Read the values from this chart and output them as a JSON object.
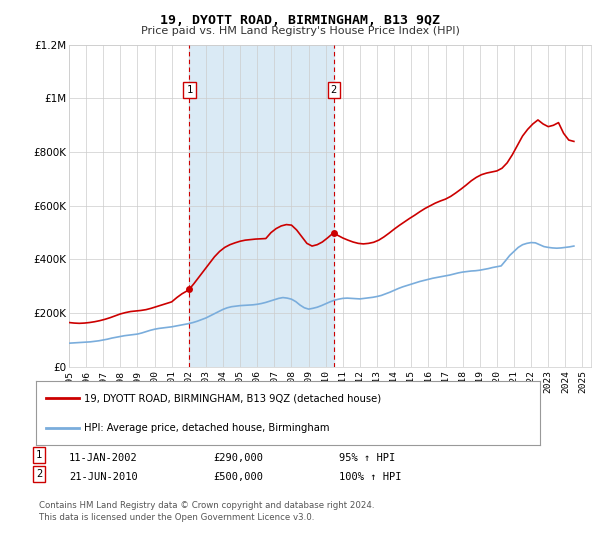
{
  "title": "19, DYOTT ROAD, BIRMINGHAM, B13 9QZ",
  "subtitle": "Price paid vs. HM Land Registry's House Price Index (HPI)",
  "hpi_label": "HPI: Average price, detached house, Birmingham",
  "property_label": "19, DYOTT ROAD, BIRMINGHAM, B13 9QZ (detached house)",
  "footer": "Contains HM Land Registry data © Crown copyright and database right 2024.\nThis data is licensed under the Open Government Licence v3.0.",
  "marker1_date": 2002.04,
  "marker1_value": 290000,
  "marker2_date": 2010.47,
  "marker2_value": 500000,
  "vline1_date": 2002.04,
  "vline2_date": 2010.47,
  "annotation1_date": "11-JAN-2002",
  "annotation1_price": "£290,000",
  "annotation1_hpi": "95% ↑ HPI",
  "annotation2_date": "21-JUN-2010",
  "annotation2_price": "£500,000",
  "annotation2_hpi": "100% ↑ HPI",
  "ylim": [
    0,
    1200000
  ],
  "xlim": [
    1995.0,
    2025.5
  ],
  "yticks": [
    0,
    200000,
    400000,
    600000,
    800000,
    1000000,
    1200000
  ],
  "ytick_labels": [
    "£0",
    "£200K",
    "£400K",
    "£600K",
    "£800K",
    "£1M",
    "£1.2M"
  ],
  "property_color": "#cc0000",
  "hpi_color": "#7aaddc",
  "vline_color": "#cc0000",
  "shade_color": "#daeaf5",
  "plot_bg": "#ffffff",
  "grid_color": "#cccccc",
  "hpi_data_x": [
    1995.0,
    1995.25,
    1995.5,
    1995.75,
    1996.0,
    1996.25,
    1996.5,
    1996.75,
    1997.0,
    1997.25,
    1997.5,
    1997.75,
    1998.0,
    1998.25,
    1998.5,
    1998.75,
    1999.0,
    1999.25,
    1999.5,
    1999.75,
    2000.0,
    2000.25,
    2000.5,
    2000.75,
    2001.0,
    2001.25,
    2001.5,
    2001.75,
    2002.0,
    2002.25,
    2002.5,
    2002.75,
    2003.0,
    2003.25,
    2003.5,
    2003.75,
    2004.0,
    2004.25,
    2004.5,
    2004.75,
    2005.0,
    2005.25,
    2005.5,
    2005.75,
    2006.0,
    2006.25,
    2006.5,
    2006.75,
    2007.0,
    2007.25,
    2007.5,
    2007.75,
    2008.0,
    2008.25,
    2008.5,
    2008.75,
    2009.0,
    2009.25,
    2009.5,
    2009.75,
    2010.0,
    2010.25,
    2010.5,
    2010.75,
    2011.0,
    2011.25,
    2011.5,
    2011.75,
    2012.0,
    2012.25,
    2012.5,
    2012.75,
    2013.0,
    2013.25,
    2013.5,
    2013.75,
    2014.0,
    2014.25,
    2014.5,
    2014.75,
    2015.0,
    2015.25,
    2015.5,
    2015.75,
    2016.0,
    2016.25,
    2016.5,
    2016.75,
    2017.0,
    2017.25,
    2017.5,
    2017.75,
    2018.0,
    2018.25,
    2018.5,
    2018.75,
    2019.0,
    2019.25,
    2019.5,
    2019.75,
    2020.0,
    2020.25,
    2020.5,
    2020.75,
    2021.0,
    2021.25,
    2021.5,
    2021.75,
    2022.0,
    2022.25,
    2022.5,
    2022.75,
    2023.0,
    2023.25,
    2023.5,
    2023.75,
    2024.0,
    2024.25,
    2024.5
  ],
  "hpi_data_y": [
    88000,
    89000,
    90000,
    91000,
    92000,
    93000,
    95000,
    97000,
    100000,
    103000,
    107000,
    110000,
    113000,
    116000,
    118000,
    120000,
    122000,
    126000,
    131000,
    136000,
    140000,
    143000,
    145000,
    147000,
    149000,
    152000,
    155000,
    158000,
    161000,
    165000,
    170000,
    176000,
    182000,
    190000,
    198000,
    206000,
    214000,
    220000,
    224000,
    226000,
    228000,
    229000,
    230000,
    231000,
    233000,
    236000,
    240000,
    245000,
    250000,
    255000,
    258000,
    256000,
    252000,
    243000,
    230000,
    220000,
    215000,
    218000,
    222000,
    228000,
    235000,
    242000,
    248000,
    252000,
    255000,
    256000,
    255000,
    254000,
    253000,
    255000,
    257000,
    259000,
    262000,
    266000,
    272000,
    278000,
    285000,
    292000,
    298000,
    303000,
    308000,
    313000,
    318000,
    322000,
    326000,
    330000,
    333000,
    336000,
    339000,
    342000,
    346000,
    350000,
    353000,
    355000,
    357000,
    358000,
    360000,
    363000,
    366000,
    370000,
    373000,
    376000,
    395000,
    415000,
    430000,
    445000,
    455000,
    460000,
    463000,
    462000,
    455000,
    448000,
    445000,
    443000,
    442000,
    443000,
    445000,
    447000,
    450000
  ],
  "property_data_x": [
    1995.0,
    1995.3,
    1995.6,
    1995.9,
    1996.2,
    1996.5,
    1996.8,
    1997.1,
    1997.4,
    1997.7,
    1998.0,
    1998.3,
    1998.6,
    1998.9,
    1999.2,
    1999.5,
    1999.8,
    2000.1,
    2000.4,
    2000.7,
    2001.0,
    2001.3,
    2001.6,
    2001.9,
    2002.04,
    2002.3,
    2002.6,
    2002.9,
    2003.2,
    2003.5,
    2003.8,
    2004.1,
    2004.4,
    2004.7,
    2005.0,
    2005.3,
    2005.6,
    2005.9,
    2006.2,
    2006.5,
    2006.8,
    2007.1,
    2007.4,
    2007.7,
    2008.0,
    2008.3,
    2008.6,
    2008.9,
    2009.2,
    2009.5,
    2009.8,
    2010.1,
    2010.47,
    2010.7,
    2011.0,
    2011.3,
    2011.6,
    2011.9,
    2012.2,
    2012.5,
    2012.8,
    2013.1,
    2013.4,
    2013.7,
    2014.0,
    2014.3,
    2014.6,
    2014.9,
    2015.2,
    2015.5,
    2015.8,
    2016.1,
    2016.4,
    2016.7,
    2017.0,
    2017.3,
    2017.6,
    2017.9,
    2018.2,
    2018.5,
    2018.8,
    2019.1,
    2019.4,
    2019.7,
    2020.0,
    2020.3,
    2020.6,
    2020.9,
    2021.2,
    2021.5,
    2021.8,
    2022.1,
    2022.4,
    2022.7,
    2023.0,
    2023.3,
    2023.6,
    2023.9,
    2024.2,
    2024.5
  ],
  "property_data_y": [
    165000,
    163000,
    162000,
    163000,
    165000,
    168000,
    172000,
    177000,
    183000,
    190000,
    197000,
    202000,
    206000,
    208000,
    210000,
    213000,
    218000,
    224000,
    230000,
    236000,
    242000,
    258000,
    272000,
    283000,
    290000,
    310000,
    335000,
    360000,
    385000,
    410000,
    430000,
    445000,
    455000,
    462000,
    468000,
    472000,
    474000,
    476000,
    477000,
    478000,
    500000,
    515000,
    525000,
    530000,
    528000,
    510000,
    485000,
    460000,
    450000,
    455000,
    465000,
    480000,
    500000,
    490000,
    480000,
    472000,
    465000,
    460000,
    458000,
    460000,
    464000,
    472000,
    484000,
    498000,
    513000,
    527000,
    540000,
    553000,
    565000,
    578000,
    590000,
    600000,
    610000,
    618000,
    625000,
    635000,
    648000,
    662000,
    677000,
    693000,
    706000,
    716000,
    722000,
    726000,
    730000,
    740000,
    760000,
    790000,
    825000,
    860000,
    885000,
    905000,
    920000,
    905000,
    895000,
    900000,
    910000,
    870000,
    845000,
    840000
  ]
}
